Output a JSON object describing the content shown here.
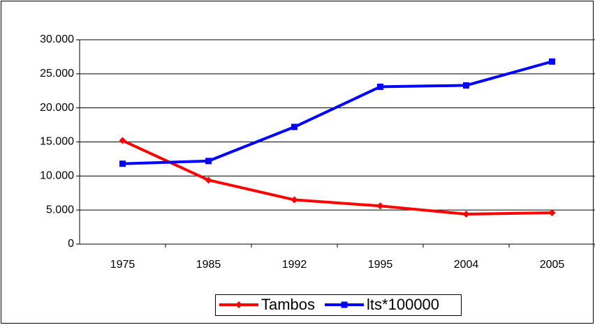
{
  "chart_data": {
    "type": "line",
    "categories": [
      "1975",
      "1985",
      "1992",
      "1995",
      "2004",
      "2005"
    ],
    "series": [
      {
        "name": "Tambos",
        "color": "#ff0000",
        "marker": "diamond",
        "values": [
          15200,
          9400,
          6500,
          5600,
          4400,
          4600
        ]
      },
      {
        "name": "lts*100000",
        "color": "#0000ff",
        "marker": "square",
        "values": [
          11800,
          12200,
          17200,
          23100,
          23300,
          26800
        ]
      }
    ],
    "ylim": [
      0,
      30000
    ],
    "yticks": [
      0,
      {
        "value": 5000,
        "label": "5.000"
      },
      {
        "value": 10000,
        "label": "10.000"
      },
      {
        "value": 15000,
        "label": "15.000"
      },
      {
        "value": 20000,
        "label": "20.000"
      },
      {
        "value": 25000,
        "label": "25.000"
      },
      {
        "value": 30000,
        "label": "30.000"
      }
    ],
    "grid": true,
    "legend": "bottom"
  }
}
